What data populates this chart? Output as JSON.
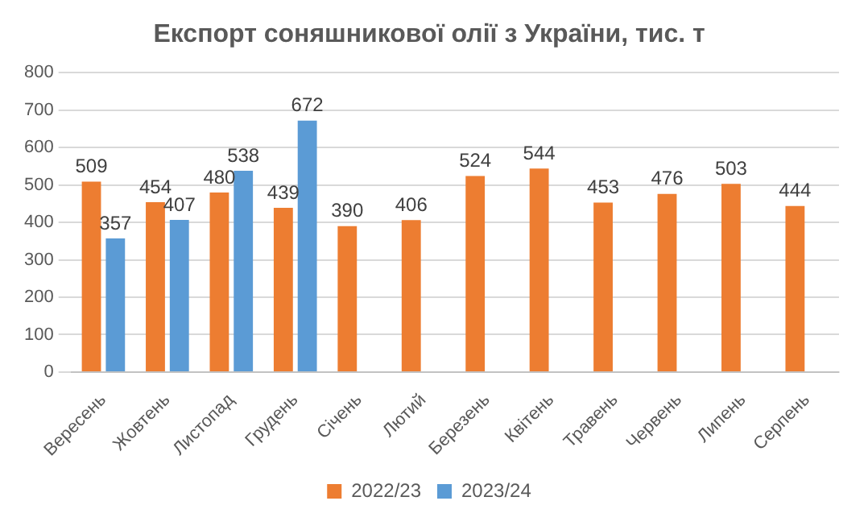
{
  "chart_data": {
    "type": "bar",
    "title": "Експорт соняшникової олії з України, тис. т",
    "categories": [
      "Вересень",
      "Жовтень",
      "Листопад",
      "Грудень",
      "Січень",
      "Лютий",
      "Березень",
      "Квітень",
      "Травень",
      "Червень",
      "Липень",
      "Серпень"
    ],
    "series": [
      {
        "name": "2022/23",
        "color": "#ed7d31",
        "values": [
          509,
          454,
          480,
          439,
          390,
          406,
          524,
          544,
          453,
          476,
          503,
          444
        ]
      },
      {
        "name": "2023/24",
        "color": "#5b9bd5",
        "values": [
          357,
          407,
          538,
          672,
          null,
          null,
          null,
          null,
          null,
          null,
          null,
          null
        ]
      }
    ],
    "ylim": [
      0,
      800
    ],
    "yticks": [
      0,
      100,
      200,
      300,
      400,
      500,
      600,
      700,
      800
    ],
    "grid": "y",
    "legend": "bottom",
    "data_labels": true
  }
}
